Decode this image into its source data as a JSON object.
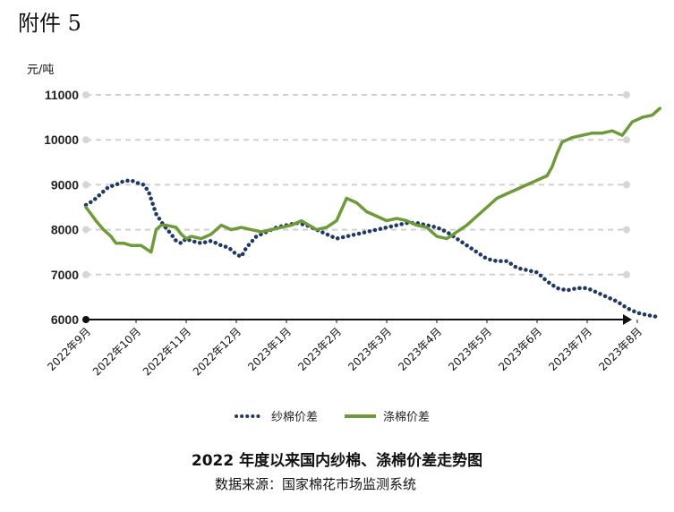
{
  "header": {
    "attachment": "附件 5"
  },
  "chart_data": {
    "type": "line",
    "title": "2022 年度以来国内纱棉、涤棉价差走势图",
    "source": "数据来源：国家棉花市场监测系统",
    "ylabel": "元/吨",
    "xlabel": "",
    "ylim": [
      6000,
      11000
    ],
    "yticks": [
      "6000",
      "7000",
      "8000",
      "9000",
      "10000",
      "11000"
    ],
    "categories": [
      "2022年9月",
      "2022年10月",
      "2022年11月",
      "2022年12月",
      "2023年1月",
      "2023年2月",
      "2023年3月",
      "2023年4月",
      "2023年5月",
      "2023年6月",
      "2023年7月",
      "2023年8月"
    ],
    "grid": "horizontal-dashed",
    "legend_position": "bottom",
    "colors": {
      "yarn": "#1f3864",
      "poly": "#6e9a3a"
    },
    "series": [
      {
        "name": "纱棉价差",
        "style": "dotted",
        "x": [
          0,
          0.15,
          0.3,
          0.45,
          0.6,
          0.75,
          0.9,
          1.0,
          1.15,
          1.25,
          1.4,
          1.55,
          1.7,
          1.8,
          1.9,
          2.0,
          2.1,
          2.3,
          2.5,
          2.7,
          2.85,
          3.0,
          3.1,
          3.2,
          3.4,
          3.6,
          3.8,
          4.0,
          4.2,
          4.4,
          4.6,
          4.8,
          5.0,
          5.2,
          5.4,
          5.6,
          5.8,
          6.0,
          6.2,
          6.4,
          6.6,
          6.8,
          7.0,
          7.2,
          7.4,
          7.6,
          7.8,
          8.0,
          8.2,
          8.4,
          8.6,
          8.8,
          9.0,
          9.2,
          9.4,
          9.6,
          9.8,
          10.0,
          10.2,
          10.4,
          10.6,
          10.8,
          11.0,
          11.2,
          11.45
        ],
        "y": [
          8550,
          8650,
          8800,
          8950,
          9000,
          9080,
          9100,
          9050,
          9000,
          8850,
          8350,
          8100,
          7900,
          7750,
          7700,
          7800,
          7750,
          7700,
          7750,
          7650,
          7600,
          7450,
          7400,
          7600,
          7850,
          7950,
          8050,
          8100,
          8150,
          8100,
          8000,
          7900,
          7800,
          7850,
          7900,
          7950,
          8000,
          8050,
          8100,
          8150,
          8150,
          8100,
          8050,
          7950,
          7800,
          7650,
          7500,
          7350,
          7300,
          7300,
          7150,
          7100,
          7050,
          6850,
          6700,
          6650,
          6700,
          6700,
          6600,
          6500,
          6400,
          6250,
          6150,
          6100,
          6050
        ]
      },
      {
        "name": "涤棉价差",
        "style": "solid",
        "x": [
          0,
          0.1,
          0.2,
          0.35,
          0.5,
          0.6,
          0.75,
          0.9,
          1.1,
          1.3,
          1.4,
          1.5,
          1.6,
          1.8,
          1.9,
          2.0,
          2.1,
          2.3,
          2.5,
          2.7,
          2.9,
          3.1,
          3.3,
          3.5,
          3.7,
          3.9,
          4.1,
          4.3,
          4.45,
          4.6,
          4.8,
          5.0,
          5.2,
          5.4,
          5.6,
          5.8,
          6.0,
          6.2,
          6.4,
          6.6,
          6.8,
          7.0,
          7.2,
          7.4,
          7.6,
          7.8,
          8.0,
          8.2,
          8.4,
          8.6,
          8.8,
          9.0,
          9.2,
          9.3,
          9.4,
          9.5,
          9.7,
          9.9,
          10.1,
          10.3,
          10.5,
          10.7,
          10.9,
          11.1,
          11.3,
          11.45
        ],
        "y": [
          8500,
          8350,
          8200,
          8000,
          7850,
          7700,
          7700,
          7650,
          7650,
          7500,
          8000,
          8100,
          8100,
          8050,
          7900,
          7800,
          7850,
          7800,
          7900,
          8100,
          8000,
          8050,
          8000,
          7950,
          8000,
          8050,
          8100,
          8200,
          8100,
          8000,
          8050,
          8200,
          8700,
          8600,
          8400,
          8300,
          8200,
          8250,
          8200,
          8100,
          8050,
          7850,
          7800,
          7950,
          8100,
          8300,
          8500,
          8700,
          8800,
          8900,
          9000,
          9100,
          9200,
          9400,
          9700,
          9950,
          10050,
          10100,
          10150,
          10150,
          10200,
          10100,
          10400,
          10500,
          10550,
          10700
        ]
      }
    ]
  }
}
